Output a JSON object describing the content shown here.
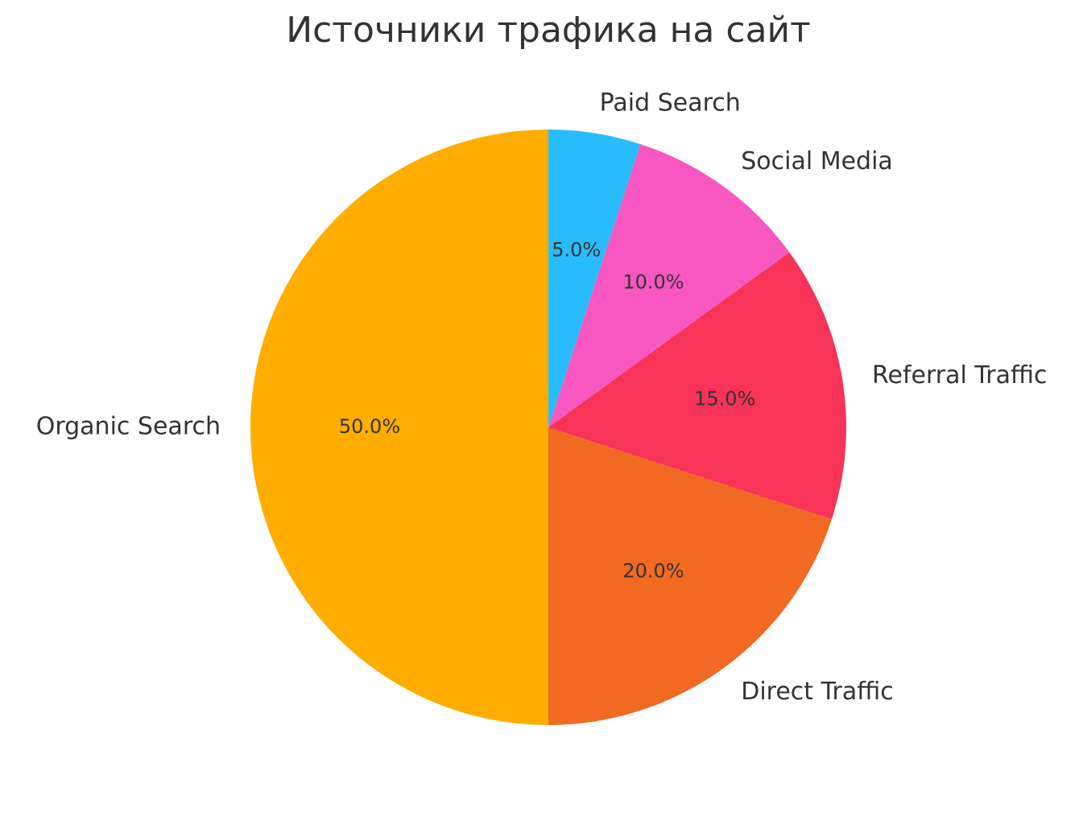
{
  "chart_data": {
    "type": "pie",
    "title": "Источники трафика на сайт",
    "categories": [
      "Organic Search",
      "Direct Traffic",
      "Referral Traffic",
      "Social Media",
      "Paid Search"
    ],
    "values": [
      50,
      20,
      15,
      10,
      5
    ],
    "value_labels": [
      "50.0%",
      "20.0%",
      "15.0%",
      "10.0%",
      "5.0%"
    ],
    "colors": [
      "#FFAD00",
      "#F26A21",
      "#F73357",
      "#F857C1",
      "#29BCFC"
    ]
  }
}
